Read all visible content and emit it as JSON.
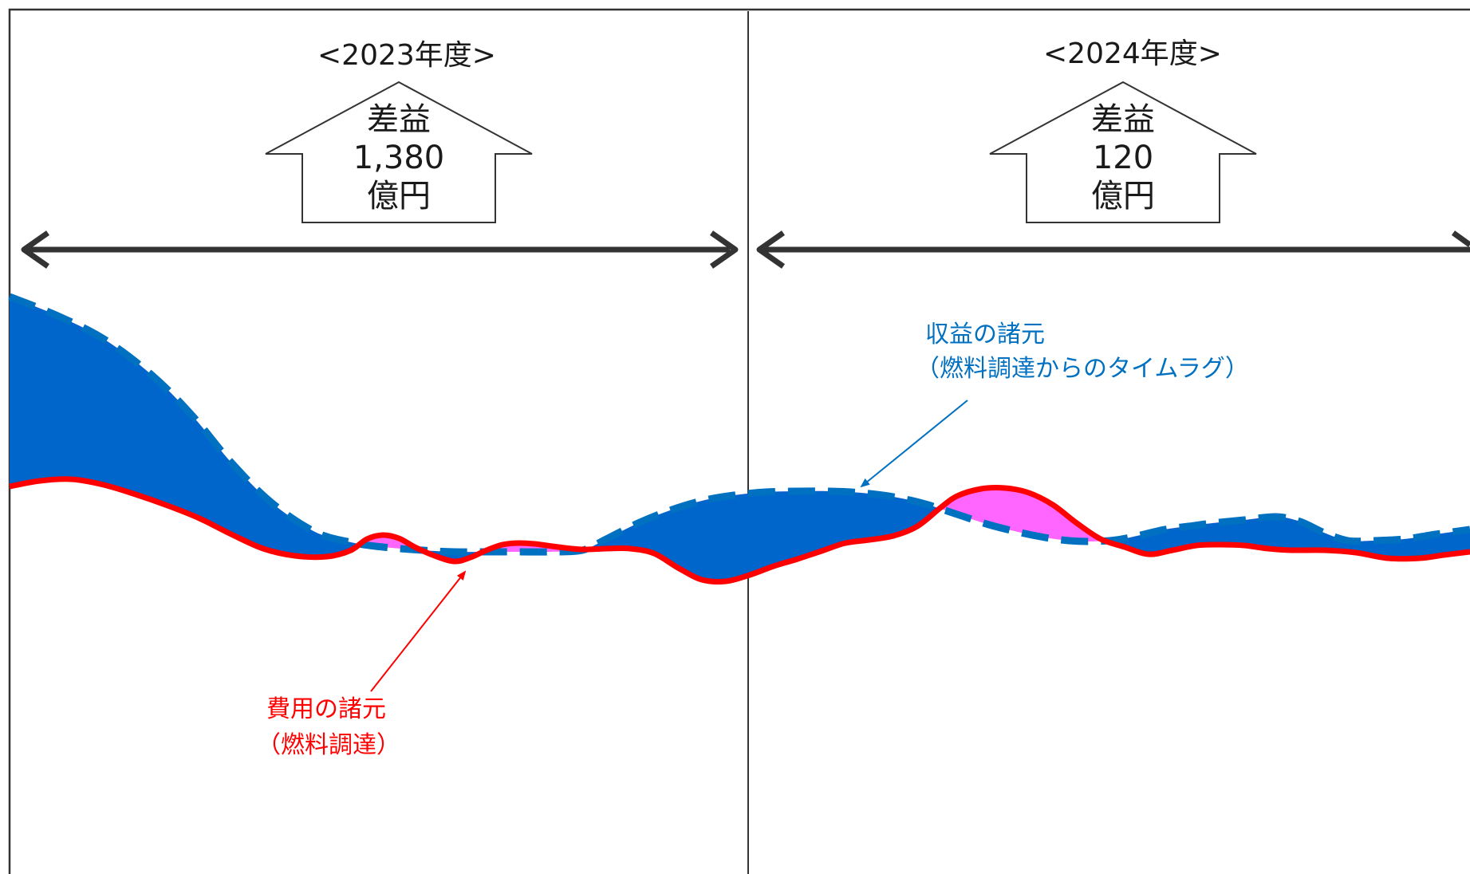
{
  "periods": [
    {
      "label": "<2023年度>",
      "margin_title": "差益",
      "margin_value": "1,380",
      "margin_unit": "億円"
    },
    {
      "label": "<2024年度>",
      "margin_title": "差益",
      "margin_value": "120",
      "margin_unit": "億円"
    }
  ],
  "revenue_label": {
    "line1": "収益の諸元",
    "line2": "（燃料調達からのタイムラグ）"
  },
  "cost_label": {
    "line1": "費用の諸元",
    "line2": "（燃料調達）"
  },
  "colors": {
    "revenue": "#0070C0",
    "positive_area": "#0066CC",
    "cost": "#FF0000",
    "negative_area": "#FF66FF",
    "frame": "#333333"
  }
}
